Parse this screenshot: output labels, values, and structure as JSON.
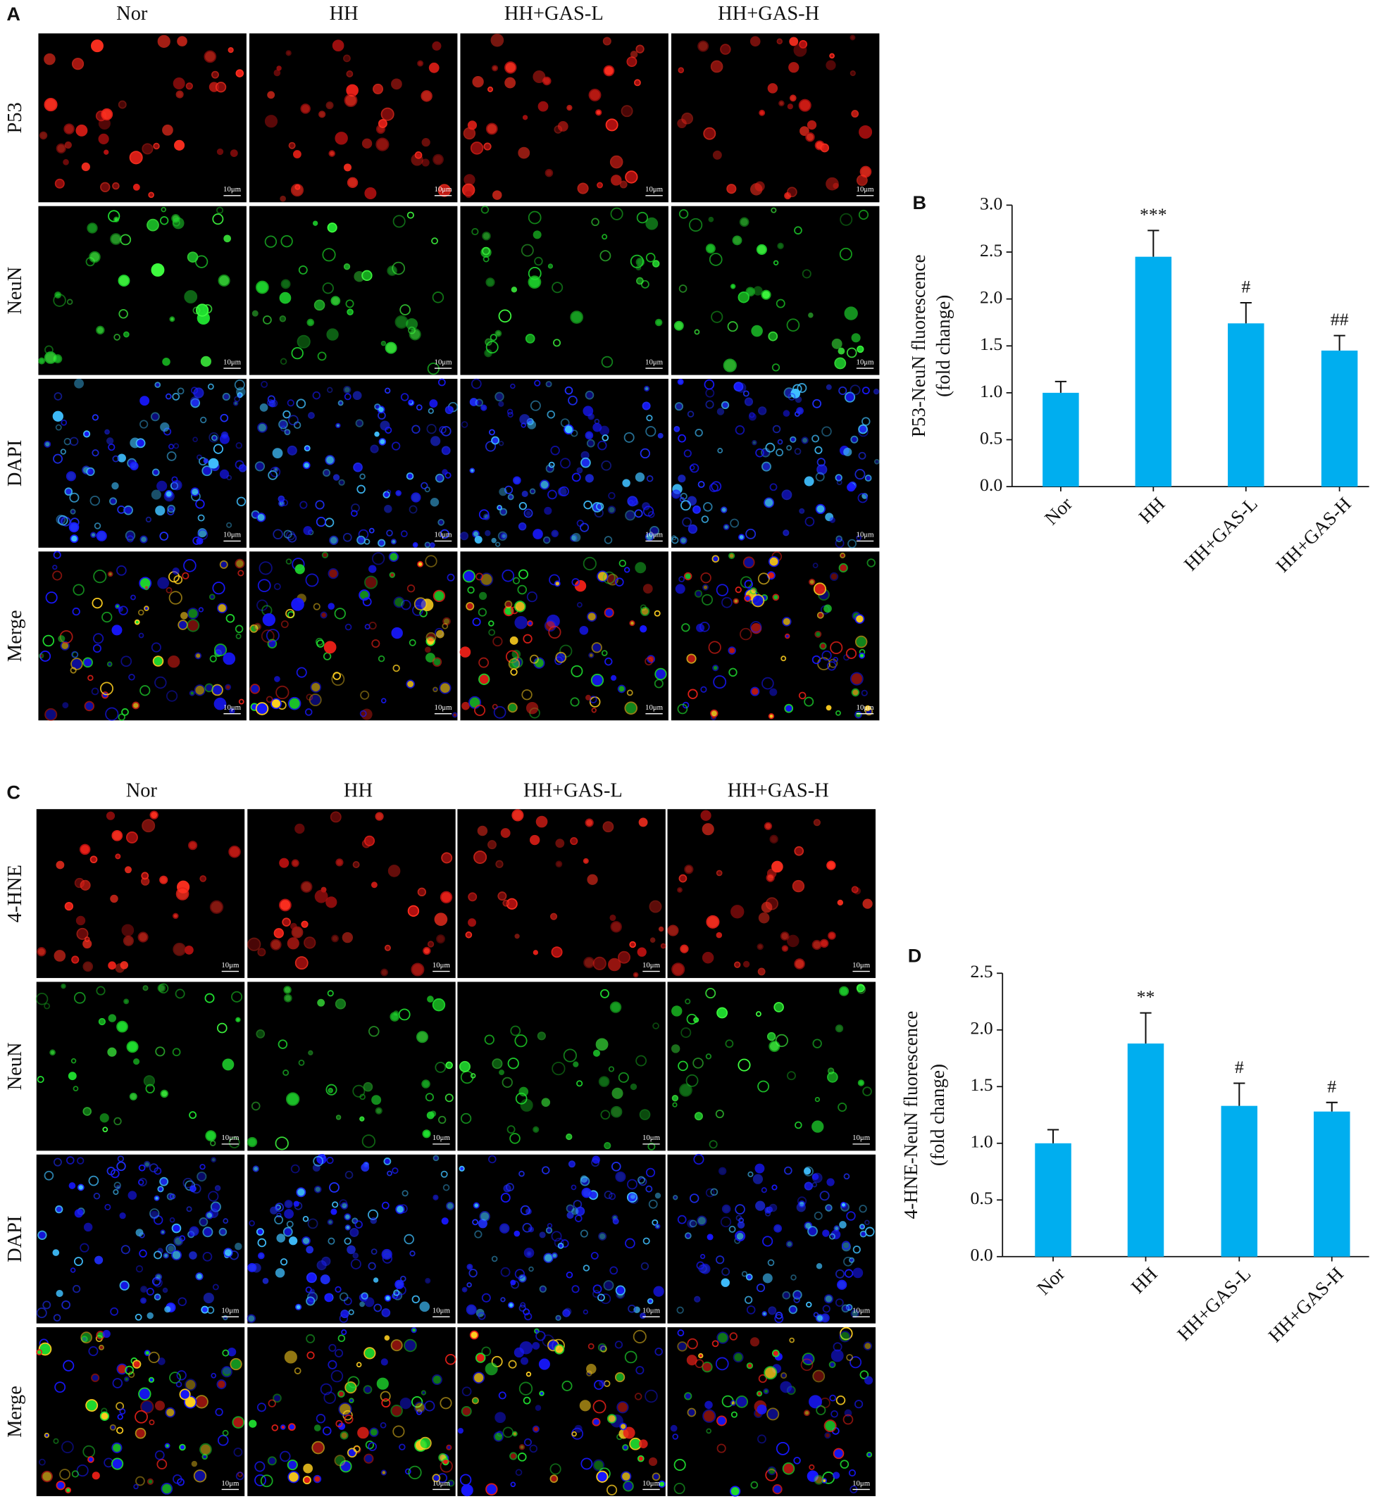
{
  "image_panels": [
    {
      "panel_label": "A",
      "columns": [
        "Nor",
        "HH",
        "HH+GAS-L",
        "HH+GAS-H"
      ],
      "rows": [
        "P53",
        "NeuN",
        "DAPI",
        "Merge"
      ],
      "scale_bar": "10μm"
    },
    {
      "panel_label": "C",
      "columns": [
        "Nor",
        "HH",
        "HH+GAS-L",
        "HH+GAS-H"
      ],
      "rows": [
        "4-HNE",
        "NeuN",
        "DAPI",
        "Merge"
      ],
      "scale_bar": "10μm"
    }
  ],
  "chart_data": [
    {
      "type": "bar",
      "panel_label": "B",
      "ylabel": [
        "P53-NeuN fluorescence",
        "(fold change)"
      ],
      "categories": [
        "Nor",
        "HH",
        "HH+GAS-L",
        "HH+GAS-H"
      ],
      "values": [
        1.0,
        2.45,
        1.74,
        1.45
      ],
      "errors": [
        0.12,
        0.28,
        0.22,
        0.16
      ],
      "annotations": [
        null,
        "***",
        "#",
        "##"
      ],
      "color": "#00aeef",
      "ylim": [
        0,
        3
      ],
      "yticks": [
        {
          "value": 0,
          "label": "0.0"
        },
        {
          "value": 0.5,
          "label": "0.5"
        },
        {
          "value": 1,
          "label": "1.0"
        },
        {
          "value": 1.5,
          "label": "1.5"
        },
        {
          "value": 2,
          "label": "2.0"
        },
        {
          "value": 2.5,
          "label": "2.5"
        },
        {
          "value": 3,
          "label": "3.0"
        }
      ]
    },
    {
      "type": "bar",
      "panel_label": "D",
      "ylabel": [
        "4-HNE-NeuN fluorescence",
        "(fold change)"
      ],
      "categories": [
        "Nor",
        "HH",
        "HH+GAS-L",
        "HH+GAS-H"
      ],
      "values": [
        1.0,
        1.88,
        1.33,
        1.28
      ],
      "errors": [
        0.12,
        0.27,
        0.2,
        0.08
      ],
      "annotations": [
        null,
        "**",
        "#",
        "#"
      ],
      "color": "#00aeef",
      "ylim": [
        0,
        2.5
      ],
      "yticks": [
        {
          "value": 0,
          "label": "0.0"
        },
        {
          "value": 0.5,
          "label": "0.5"
        },
        {
          "value": 1,
          "label": "1.0"
        },
        {
          "value": 1.5,
          "label": "1.5"
        },
        {
          "value": 2,
          "label": "2.0"
        },
        {
          "value": 2.5,
          "label": "2.5"
        }
      ]
    }
  ]
}
